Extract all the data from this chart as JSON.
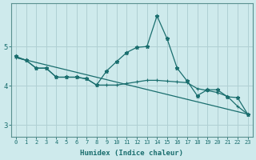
{
  "xlabel": "Humidex (Indice chaleur)",
  "bg_color": "#ceeaec",
  "grid_color": "#b0d0d4",
  "line_color": "#1a6e6e",
  "xlim": [
    -0.5,
    23.5
  ],
  "ylim": [
    2.7,
    6.1
  ],
  "yticks": [
    3,
    4,
    5
  ],
  "xticks": [
    0,
    1,
    2,
    3,
    4,
    5,
    6,
    7,
    8,
    9,
    10,
    11,
    12,
    13,
    14,
    15,
    16,
    17,
    18,
    19,
    20,
    21,
    22,
    23
  ],
  "line1_x": [
    0,
    1,
    2,
    3,
    4,
    5,
    6,
    7,
    8,
    9,
    10,
    11,
    12,
    13,
    14,
    15,
    16,
    17,
    18,
    19,
    20,
    21,
    22,
    23
  ],
  "line1_y": [
    4.75,
    4.65,
    4.45,
    4.45,
    4.22,
    4.22,
    4.22,
    4.18,
    4.02,
    4.38,
    4.62,
    4.85,
    4.98,
    5.0,
    5.78,
    5.2,
    4.45,
    4.12,
    3.75,
    3.9,
    3.9,
    3.72,
    3.7,
    3.28
  ],
  "line2_x": [
    0,
    1,
    2,
    3,
    4,
    5,
    6,
    7,
    8,
    9,
    10,
    11,
    12,
    13,
    14,
    15,
    16,
    17,
    18,
    19,
    20,
    21,
    22,
    23
  ],
  "line2_y": [
    4.72,
    4.65,
    4.45,
    4.45,
    4.22,
    4.22,
    4.22,
    4.18,
    4.02,
    4.02,
    4.02,
    4.06,
    4.1,
    4.14,
    4.14,
    4.12,
    4.1,
    4.08,
    3.93,
    3.88,
    3.83,
    3.73,
    3.48,
    3.28
  ],
  "line3_x": [
    0,
    23
  ],
  "line3_y": [
    4.72,
    3.28
  ]
}
